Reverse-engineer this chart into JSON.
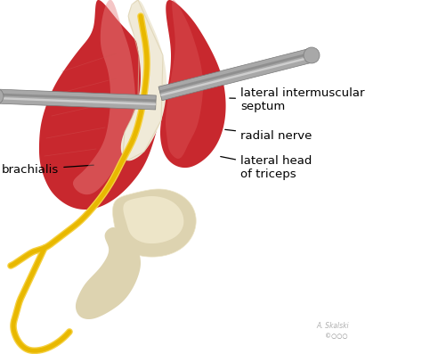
{
  "bg_color": "#ffffff",
  "fig_width": 4.74,
  "fig_height": 3.97,
  "dpi": 100,
  "labels": {
    "lateral_intermuscular_septum": "lateral intermuscular\nseptum",
    "radial_nerve": "radial nerve",
    "lateral_head_of_triceps": "lateral head\nof triceps",
    "brachialis": "brachialis"
  },
  "muscle_red": "#c8282e",
  "muscle_red_mid": "#b02020",
  "muscle_red_dark": "#8a1010",
  "muscle_highlight": "#e88080",
  "muscle_fiber": "#d05050",
  "bone_color": "#ddd3b0",
  "bone_light": "#ede5c8",
  "nerve_yellow": "#e8b800",
  "nerve_yellow2": "#f5d040",
  "septum_white": "#f0ead8",
  "septum_edge": "#d8cca8",
  "metal_mid": "#a8a8a8",
  "metal_light": "#d8d8d8",
  "metal_dark": "#787878",
  "text_color": "#000000",
  "font_size": 9.5
}
